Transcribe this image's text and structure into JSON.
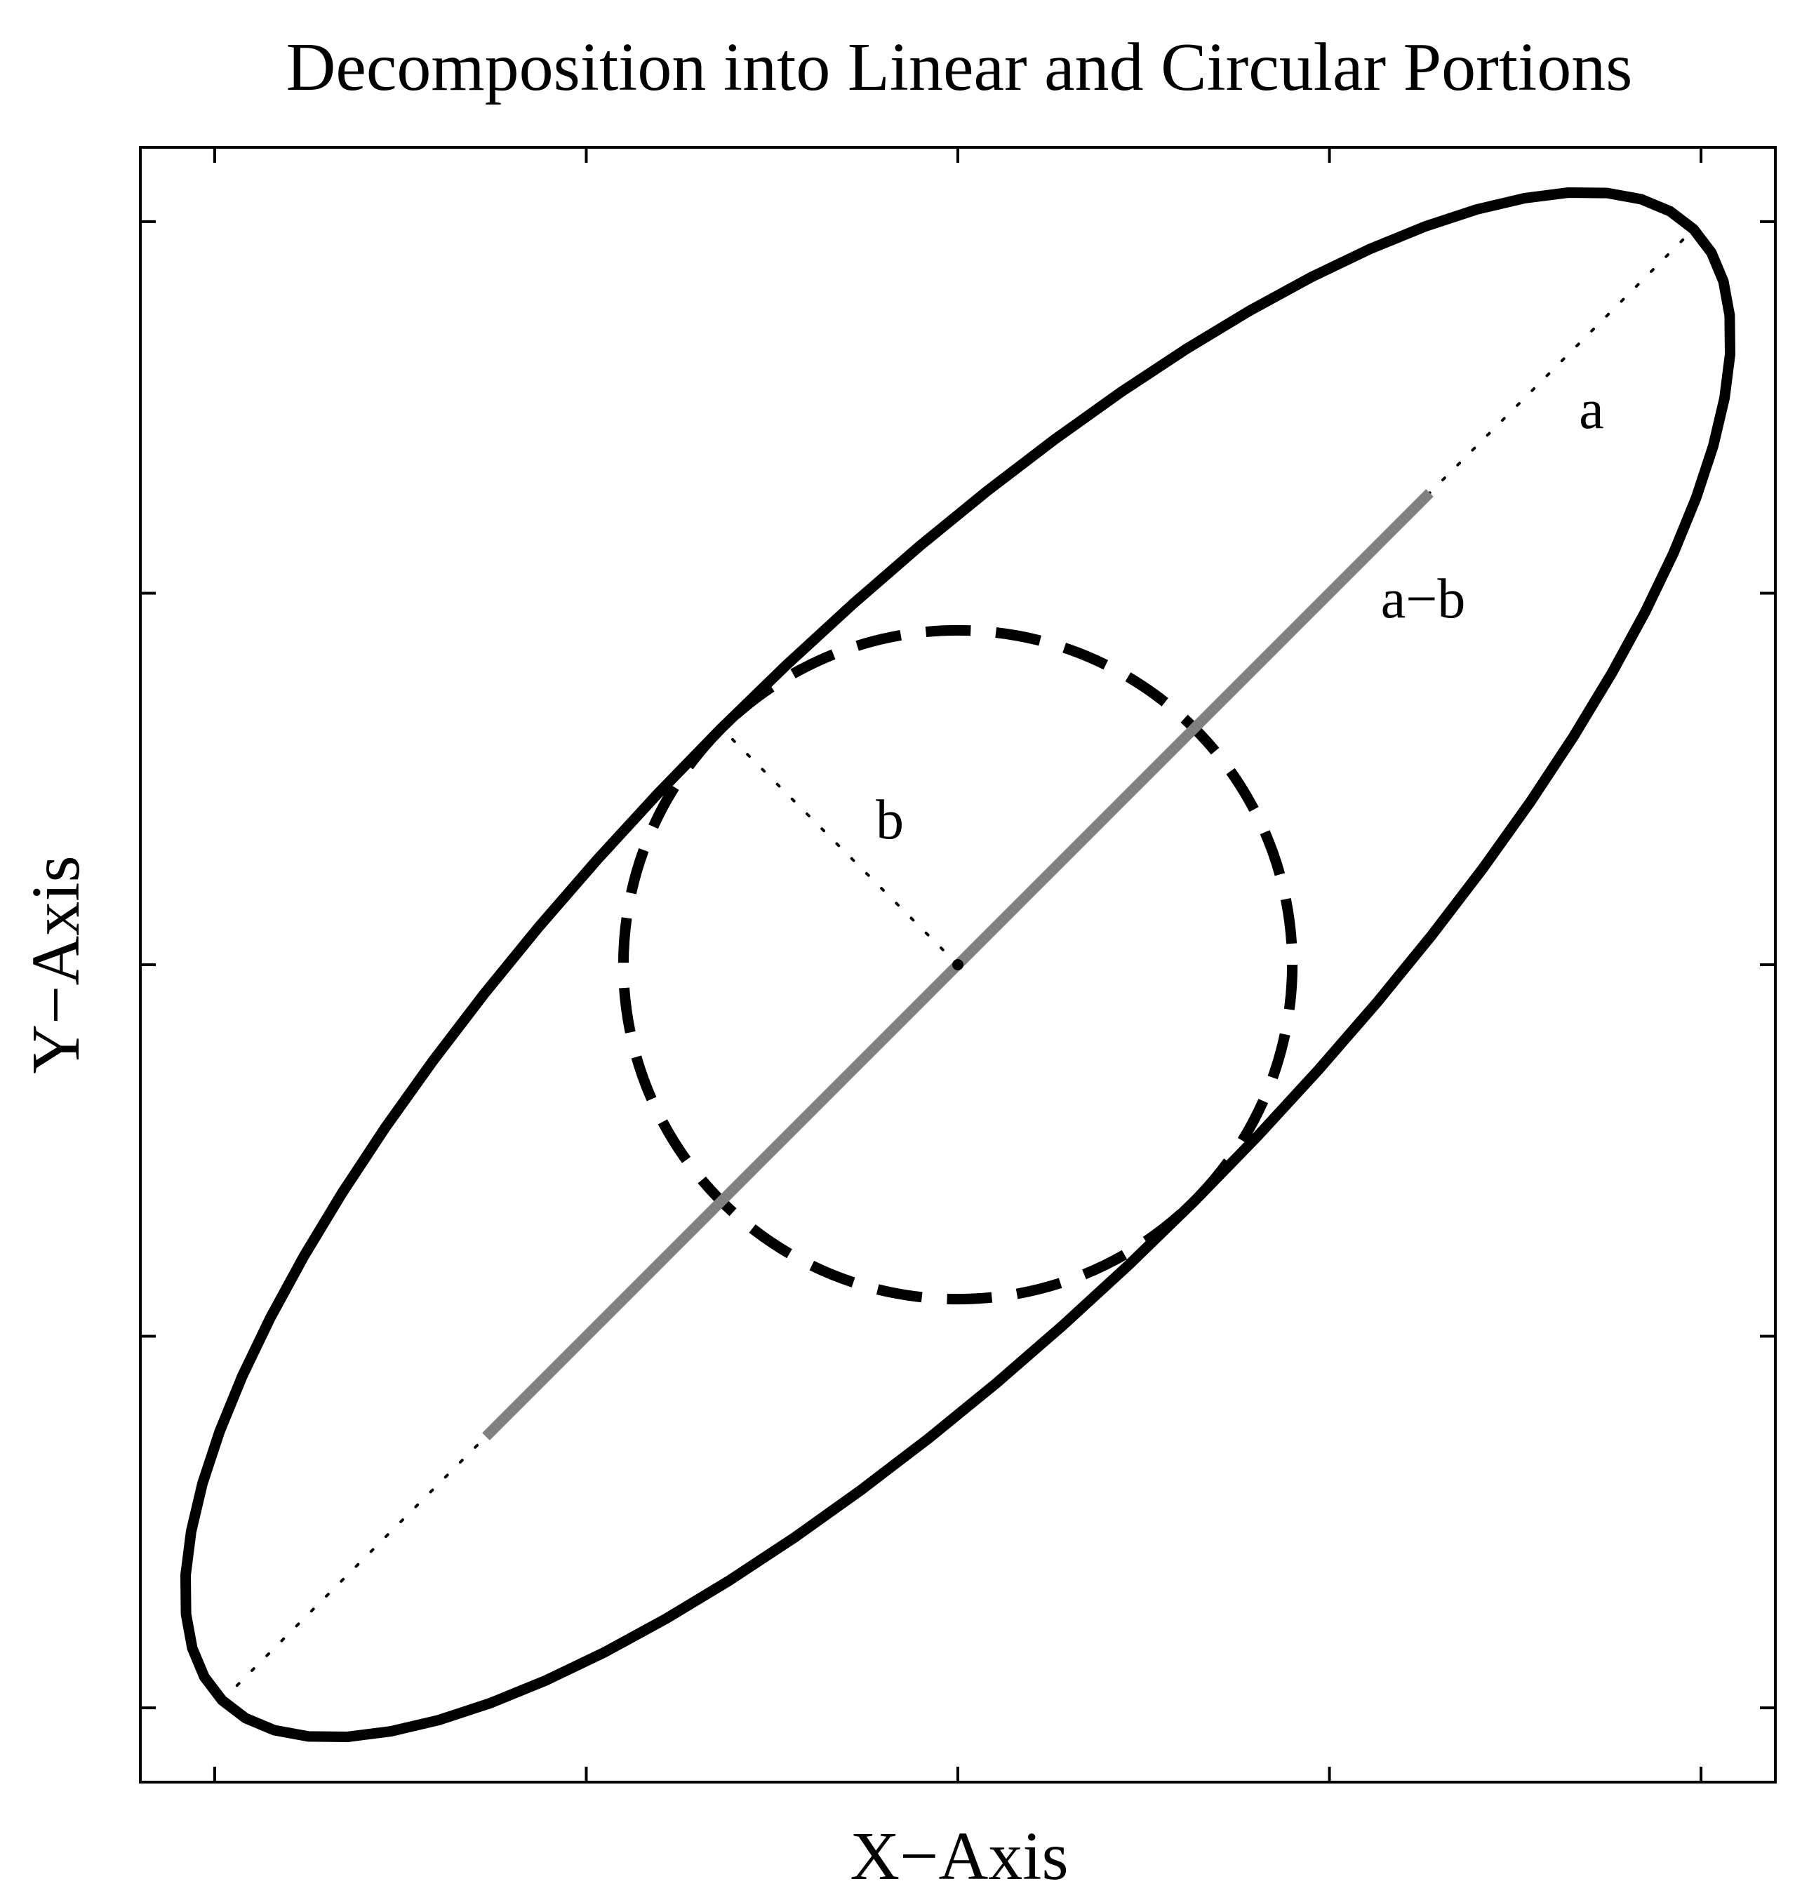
{
  "figure": {
    "title": "Decomposition into Linear and Circular Portions",
    "xlabel": "X−Axis",
    "ylabel": "Y−Axis"
  },
  "labels": {
    "a": "a",
    "a_minus_b": "a−b",
    "b": "b"
  },
  "chart_data": {
    "type": "diagram",
    "grid": false,
    "xlim": [
      -2.2,
      2.2
    ],
    "ylim": [
      -2.2,
      2.2
    ],
    "xticks": [
      -2,
      -1,
      0,
      1,
      2
    ],
    "yticks": [
      -2,
      -1,
      0,
      1,
      2
    ],
    "ellipse": {
      "center": [
        0,
        0
      ],
      "a": 2.8,
      "b": 0.9,
      "angle_deg": 45
    },
    "circle": {
      "center": [
        0,
        0
      ],
      "radius": 0.9,
      "style": "dashed"
    },
    "segment_a_minus_b": {
      "from": [
        -1.27,
        -1.27
      ],
      "to": [
        1.27,
        1.27
      ],
      "color": "#808080"
    },
    "dotted_major_axis": {
      "length": 2.8
    },
    "dotted_radius_b": {
      "length": 0.9,
      "angle_deg": 135
    },
    "colors": {
      "outline": "#000000",
      "segment": "#808080"
    }
  }
}
